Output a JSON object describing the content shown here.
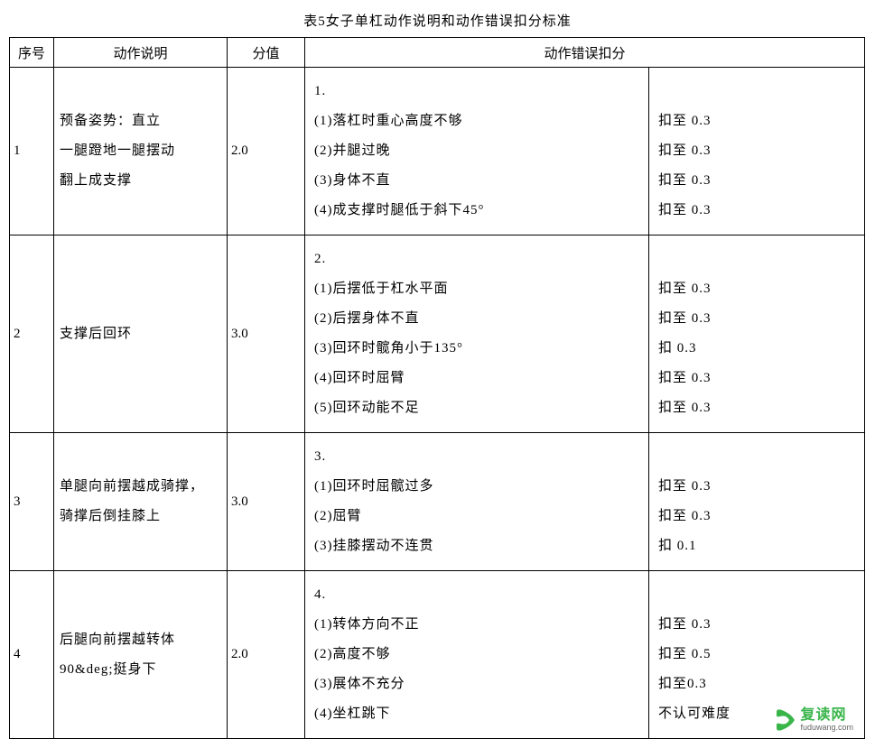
{
  "title": "表5女子单杠动作说明和动作错误扣分标准",
  "headers": {
    "idx": "序号",
    "desc": "动作说明",
    "score": "分值",
    "err": "动作错误扣分"
  },
  "rows": [
    {
      "idx": "1",
      "desc": [
        "预备姿势：直立",
        "一腿蹬地一腿摆动",
        "翻上成支撑"
      ],
      "score": "2.0",
      "err_head": "1.",
      "errors": [
        {
          "t": "(1)落杠时重心高度不够",
          "d": "扣至 0.3"
        },
        {
          "t": "(2)并腿过晚",
          "d": "扣至 0.3"
        },
        {
          "t": "(3)身体不直",
          "d": "扣至 0.3"
        },
        {
          "t": "(4)成支撑时腿低于斜下45&deg;",
          "d": "扣至 0.3"
        }
      ]
    },
    {
      "idx": "2",
      "desc": [
        "支撑后回环"
      ],
      "score": "3.0",
      "err_head": "2.",
      "errors": [
        {
          "t": "(1)后摆低于杠水平面",
          "d": "扣至 0.3"
        },
        {
          "t": "(2)后摆身体不直",
          "d": "扣至 0.3"
        },
        {
          "t": "(3)回环时髋角小于135&deg;",
          "d": "扣 0.3"
        },
        {
          "t": "(4)回环时屈臂",
          "d": "扣至 0.3"
        },
        {
          "t": "(5)回环动能不足",
          "d": "扣至 0.3"
        }
      ]
    },
    {
      "idx": "3",
      "desc": [
        "单腿向前摆越成骑撑，",
        "骑撑后倒挂膝上"
      ],
      "score": "3.0",
      "err_head": "3.",
      "errors": [
        {
          "t": "(1)回环时屈髋过多",
          "d": "扣至 0.3"
        },
        {
          "t": "(2)屈臂",
          "d": "扣至 0.3"
        },
        {
          "t": "(3)挂膝摆动不连贯",
          "d": "扣 0.1"
        }
      ]
    },
    {
      "idx": "4",
      "desc": [
        "后腿向前摆越转体",
        "90&deg;挺身下"
      ],
      "score": "2.0",
      "err_head": "4.",
      "errors": [
        {
          "t": "(1)转体方向不正",
          "d": "扣至 0.3"
        },
        {
          "t": "(2)高度不够",
          "d": "扣至 0.5"
        },
        {
          "t": "(3)展体不充分",
          "d": "扣至0.3"
        },
        {
          "t": "(4)坐杠跳下",
          "d": "不认可难度"
        }
      ]
    }
  ],
  "logo": {
    "cn": "复读网",
    "en": "fuduwang.com",
    "color": "#39b54a"
  }
}
